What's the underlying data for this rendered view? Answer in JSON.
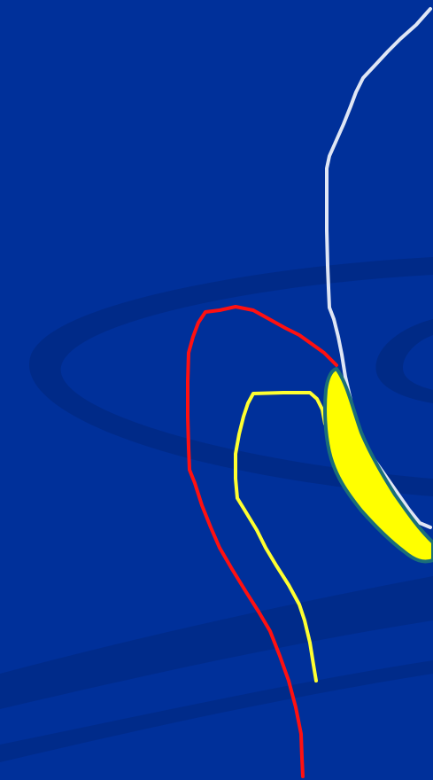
{
  "colors": {
    "background": "#00309a",
    "swoosh": "#002a86",
    "swoosh_light": "#0a3aa4",
    "white_outline": "#dfe6f5",
    "red_outline": "#ff1010",
    "yellow_outline": "#ffff30",
    "yellow_fill": "#ffff00",
    "teal_edge": "#1a6e7a"
  },
  "shapes": [
    {
      "name": "white-contour",
      "kind": "outline",
      "color_key": "white_outline"
    },
    {
      "name": "red-contour",
      "kind": "outline",
      "color_key": "red_outline"
    },
    {
      "name": "yellow-contour",
      "kind": "outline",
      "color_key": "yellow_outline"
    },
    {
      "name": "yellow-filled-crescent",
      "kind": "filled",
      "color_key": "yellow_fill"
    }
  ]
}
